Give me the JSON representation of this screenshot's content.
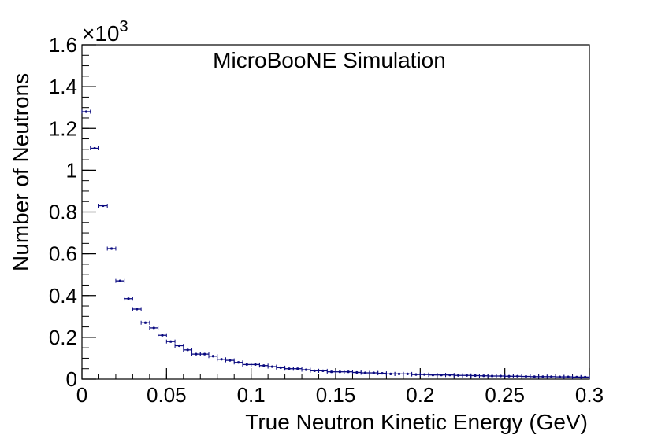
{
  "chart_data": {
    "type": "scatter",
    "title": "",
    "annotation": "MicroBooNE Simulation",
    "xlabel": "True Neutron Kinetic Energy (GeV)",
    "ylabel": "Number of Neutrons",
    "y_multiplier": {
      "base": "×10",
      "exponent": "3"
    },
    "xlim": [
      0,
      0.3
    ],
    "ylim": [
      0,
      1.6
    ],
    "x_ticks": [
      0,
      0.05,
      0.1,
      0.15,
      0.2,
      0.25,
      0.3
    ],
    "x_tick_labels": [
      "0",
      "0.05",
      "0.1",
      "0.15",
      "0.2",
      "0.25",
      "0.3"
    ],
    "y_ticks": [
      0,
      0.2,
      0.4,
      0.6,
      0.8,
      1,
      1.2,
      1.4,
      1.6
    ],
    "y_tick_labels": [
      "0",
      "0.2",
      "0.4",
      "0.6",
      "0.8",
      "1",
      "1.2",
      "1.4",
      "1.6"
    ],
    "bin_width": 0.005,
    "series": [
      {
        "name": "Number of Neutrons",
        "color": "#0a0a80",
        "x": [
          0.0025,
          0.0075,
          0.0125,
          0.0175,
          0.0225,
          0.0275,
          0.0325,
          0.0375,
          0.0425,
          0.0475,
          0.0525,
          0.0575,
          0.0625,
          0.0675,
          0.0725,
          0.0775,
          0.0825,
          0.0875,
          0.0925,
          0.0975,
          0.1025,
          0.1075,
          0.1125,
          0.1175,
          0.1225,
          0.1275,
          0.1325,
          0.1375,
          0.1425,
          0.1475,
          0.1525,
          0.1575,
          0.1625,
          0.1675,
          0.1725,
          0.1775,
          0.1825,
          0.1875,
          0.1925,
          0.1975,
          0.2025,
          0.2075,
          0.2125,
          0.2175,
          0.2225,
          0.2275,
          0.2325,
          0.2375,
          0.2425,
          0.2475,
          0.2525,
          0.2575,
          0.2625,
          0.2675,
          0.2725,
          0.2775,
          0.2825,
          0.2875,
          0.2925,
          0.2975
        ],
        "values": [
          1.28,
          1.105,
          0.83,
          0.625,
          0.47,
          0.385,
          0.335,
          0.27,
          0.245,
          0.21,
          0.18,
          0.16,
          0.14,
          0.12,
          0.12,
          0.11,
          0.095,
          0.09,
          0.08,
          0.07,
          0.07,
          0.065,
          0.06,
          0.055,
          0.05,
          0.05,
          0.045,
          0.04,
          0.04,
          0.035,
          0.035,
          0.035,
          0.032,
          0.03,
          0.03,
          0.028,
          0.025,
          0.025,
          0.025,
          0.022,
          0.022,
          0.02,
          0.02,
          0.02,
          0.018,
          0.018,
          0.017,
          0.016,
          0.015,
          0.015,
          0.014,
          0.014,
          0.013,
          0.012,
          0.012,
          0.012,
          0.011,
          0.011,
          0.01,
          0.01
        ]
      }
    ]
  }
}
